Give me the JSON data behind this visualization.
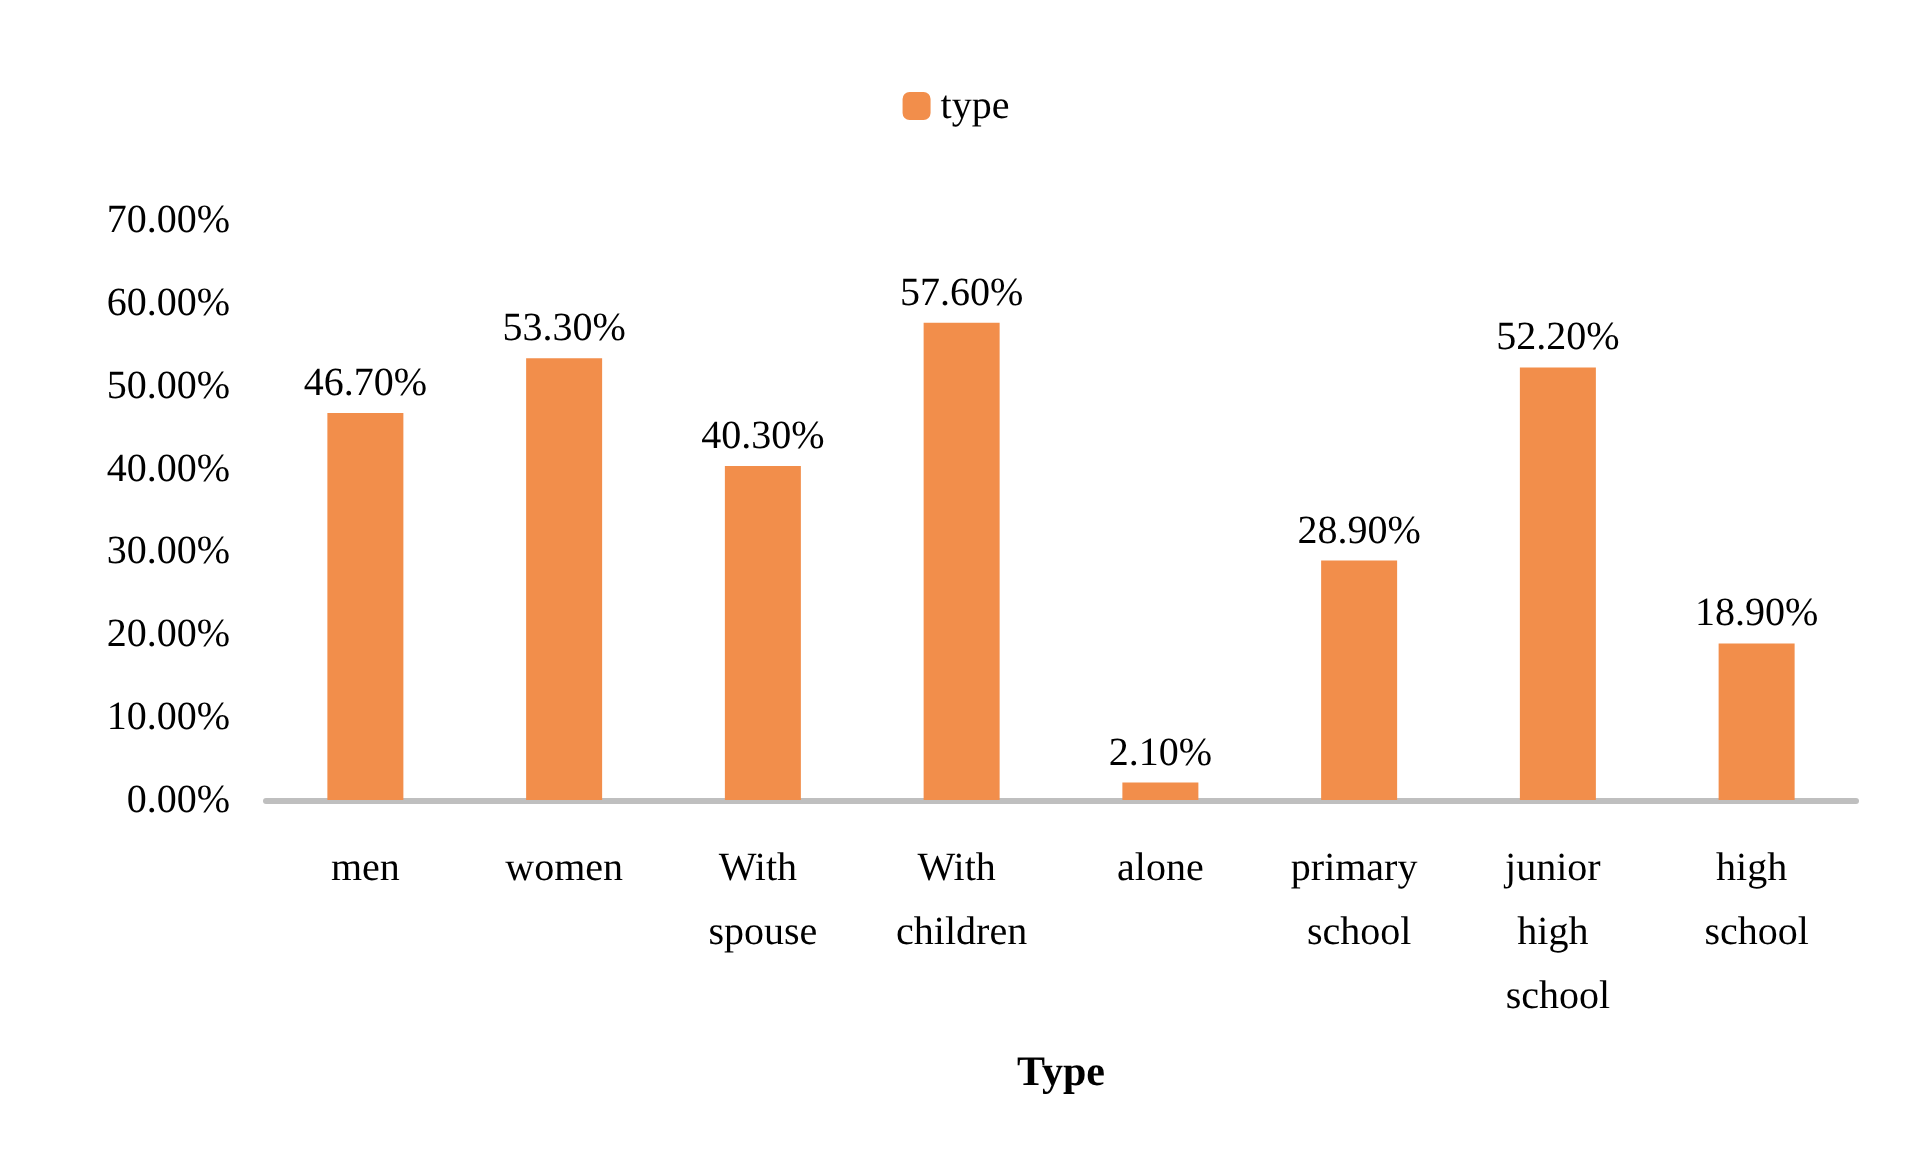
{
  "chart_data": {
    "type": "bar",
    "xlabel": "Type",
    "categories": [
      "men",
      "women",
      "With spouse",
      "With children",
      "alone",
      "primary school",
      "junior high school",
      "high school"
    ],
    "series": [
      {
        "name": "type",
        "color": "#f28e4b",
        "values": [
          46.7,
          53.3,
          40.3,
          57.6,
          2.1,
          28.9,
          52.2,
          18.9
        ],
        "value_labels": [
          "46.70%",
          "53.30%",
          "40.30%",
          "57.60%",
          "2.10%",
          "28.90%",
          "52.20%",
          "18.90%"
        ]
      }
    ],
    "ylim": [
      0,
      70
    ],
    "yticks": [
      {
        "value": 0,
        "label": "0.00%"
      },
      {
        "value": 10,
        "label": "10.00%"
      },
      {
        "value": 20,
        "label": "20.00%"
      },
      {
        "value": 30,
        "label": "30.00%"
      },
      {
        "value": 40,
        "label": "40.00%"
      },
      {
        "value": 50,
        "label": "50.00%"
      },
      {
        "value": 60,
        "label": "60.00%"
      },
      {
        "value": 70,
        "label": "70.00%"
      }
    ],
    "grid": false,
    "legend": "top"
  }
}
